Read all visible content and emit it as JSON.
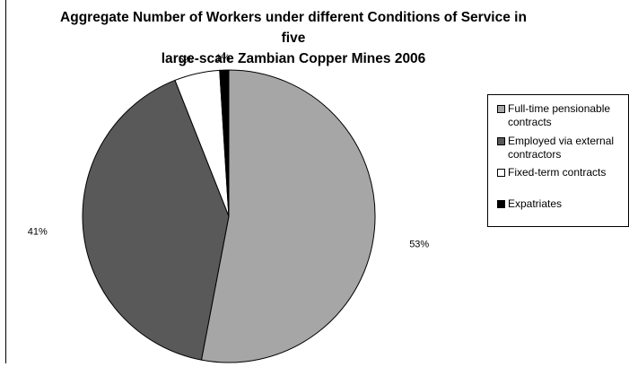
{
  "chart_data": {
    "type": "pie",
    "title_lines": [
      "Aggregate Number of Workers under different Conditions of Service in five",
      "large-scale Zambian Copper Mines 2006"
    ],
    "slices": [
      {
        "name": "Full-time pensionable contracts",
        "value": 53,
        "label": "53%",
        "color": "#a6a6a6"
      },
      {
        "name": "Employed via external contractors",
        "value": 41,
        "label": "41%",
        "color": "#595959"
      },
      {
        "name": "Fixed-term contracts",
        "value": 5,
        "label": "5%",
        "color": "#ffffff"
      },
      {
        "name": "Expatriates",
        "value": 1,
        "label": "1%",
        "color": "#000000"
      }
    ],
    "legend_position": "right",
    "legend": [
      {
        "lines": [
          "Full-time pensionable",
          "contracts"
        ]
      },
      {
        "lines": [
          "Employed via external",
          "contractors"
        ]
      },
      {
        "lines": [
          "Fixed-term contracts"
        ]
      },
      {
        "lines": [
          "Expatriates"
        ]
      }
    ]
  }
}
